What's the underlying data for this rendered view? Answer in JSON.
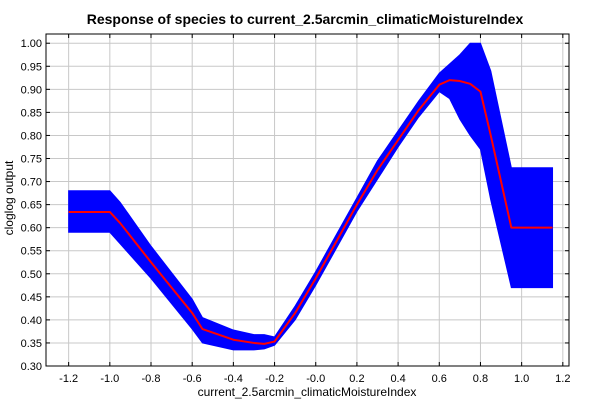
{
  "chart_data": {
    "type": "area",
    "title": "Response of species to current_2.5arcmin_climaticMoistureIndex",
    "xlabel": "current_2.5arcmin_climaticMoistureIndex",
    "ylabel": "cloglog output",
    "xlim": [
      -1.31,
      1.23
    ],
    "ylim": [
      0.3,
      1.02
    ],
    "xticks": [
      -1.2,
      -1.0,
      -0.8,
      -0.6,
      -0.4,
      -0.2,
      0.0,
      0.2,
      0.4,
      0.6,
      0.8,
      1.0,
      1.2
    ],
    "xtick_labels": [
      "-1.2",
      "-1.0",
      "-0.8",
      "-0.6",
      "-0.4",
      "-0.2",
      "-0.0",
      "0.2",
      "0.4",
      "0.6",
      "0.8",
      "1.0",
      "1.2"
    ],
    "yticks": [
      0.3,
      0.35,
      0.4,
      0.45,
      0.5,
      0.55,
      0.6,
      0.65,
      0.7,
      0.75,
      0.8,
      0.85,
      0.9,
      0.95,
      1.0
    ],
    "ytick_labels": [
      "0.30",
      "0.35",
      "0.40",
      "0.45",
      "0.50",
      "0.55",
      "0.60",
      "0.65",
      "0.70",
      "0.75",
      "0.80",
      "0.85",
      "0.90",
      "0.95",
      "1.00"
    ],
    "grid": true,
    "series": [
      {
        "color": "#ff0000",
        "x": [
          -1.2,
          -1.0,
          -0.95,
          -0.8,
          -0.6,
          -0.55,
          -0.4,
          -0.3,
          -0.25,
          -0.2,
          -0.1,
          0.0,
          0.1,
          0.2,
          0.3,
          0.4,
          0.5,
          0.6,
          0.65,
          0.7,
          0.75,
          0.8,
          0.85,
          0.95,
          1.0,
          1.15
        ],
        "y": [
          0.634,
          0.634,
          0.61,
          0.525,
          0.415,
          0.38,
          0.357,
          0.35,
          0.348,
          0.353,
          0.415,
          0.49,
          0.57,
          0.65,
          0.725,
          0.79,
          0.855,
          0.91,
          0.92,
          0.918,
          0.912,
          0.895,
          0.8,
          0.6,
          0.6,
          0.6
        ]
      }
    ],
    "band": {
      "color": "#0000ff",
      "x": [
        -1.2,
        -1.0,
        -0.95,
        -0.8,
        -0.6,
        -0.55,
        -0.4,
        -0.3,
        -0.25,
        -0.2,
        -0.1,
        0.0,
        0.1,
        0.2,
        0.3,
        0.4,
        0.5,
        0.6,
        0.65,
        0.7,
        0.75,
        0.8,
        0.85,
        0.95,
        1.0,
        1.15
      ],
      "upper": [
        0.68,
        0.68,
        0.655,
        0.56,
        0.445,
        0.405,
        0.378,
        0.368,
        0.368,
        0.363,
        0.43,
        0.505,
        0.585,
        0.665,
        0.745,
        0.81,
        0.875,
        0.935,
        0.955,
        0.975,
        1.0,
        1.0,
        0.94,
        0.73,
        0.73,
        0.73
      ],
      "lower": [
        0.59,
        0.59,
        0.565,
        0.49,
        0.38,
        0.35,
        0.335,
        0.335,
        0.337,
        0.345,
        0.4,
        0.475,
        0.555,
        0.635,
        0.705,
        0.775,
        0.84,
        0.895,
        0.88,
        0.835,
        0.8,
        0.77,
        0.66,
        0.47,
        0.47,
        0.47
      ]
    }
  }
}
